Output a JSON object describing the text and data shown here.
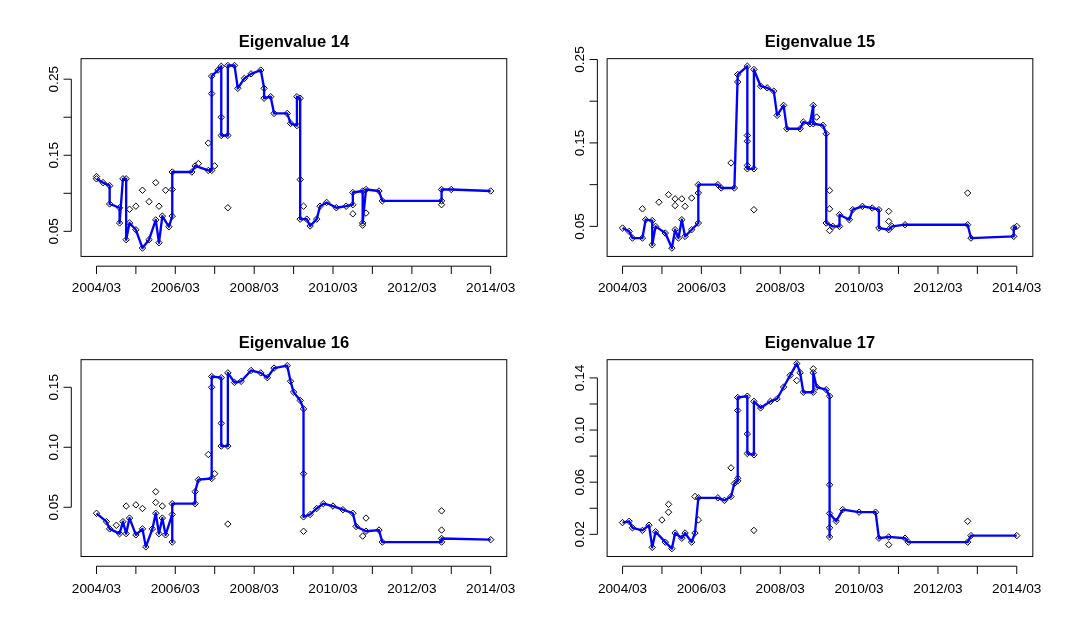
{
  "chart_data": [
    {
      "type": "line",
      "title": "Eigenvalue 14",
      "xlim": [
        "2003-10-10",
        "2014-07-28"
      ],
      "ylim": [
        0.017,
        0.277
      ],
      "xticks": [
        {
          "value": "2004-03",
          "label": "2004/03"
        },
        {
          "value": "2005-03",
          "label": null
        },
        {
          "value": "2006-03",
          "label": "2006/03"
        },
        {
          "value": "2007-03",
          "label": null
        },
        {
          "value": "2008-03",
          "label": "2008/03"
        },
        {
          "value": "2009-03",
          "label": null
        },
        {
          "value": "2010-03",
          "label": "2010/03"
        },
        {
          "value": "2011-03",
          "label": null
        },
        {
          "value": "2012-03",
          "label": "2012/03"
        },
        {
          "value": "2013-03",
          "label": null
        },
        {
          "value": "2014-03",
          "label": "2014/03"
        }
      ],
      "yticks": [
        0.05,
        {
          "value": 0.1,
          "label": null
        },
        0.15,
        {
          "value": 0.2,
          "label": null
        },
        0.25
      ],
      "grid": false,
      "series": [
        {
          "type": "scatter",
          "color": "#000000",
          "marker": "diamond",
          "x": [
            "2004-03",
            "2004-05",
            "2004-07",
            "2004-07",
            "2004-10",
            "2004-10",
            "2004-11",
            "2004-12",
            "2004-12",
            "2005-01",
            "2005-03",
            "2005-05",
            "2005-07",
            "2005-09",
            "2005-10",
            "2005-11",
            "2006-01",
            "2006-02",
            "2006-02",
            "2006-08",
            "2006-09",
            "2007-01",
            "2007-02",
            "2007-02",
            "2007-04",
            "2007-05",
            "2007-05",
            "2007-07",
            "2007-07",
            "2007-09",
            "2007-10",
            "2007-12",
            "2008-02",
            "2008-05",
            "2008-06",
            "2008-06",
            "2008-08",
            "2008-09",
            "2009-01",
            "2009-02",
            "2009-04",
            "2009-04",
            "2009-05",
            "2009-05",
            "2009-07",
            "2009-08",
            "2009-10",
            "2009-11",
            "2010-01",
            "2010-04",
            "2010-07",
            "2010-09",
            "2010-09",
            "2010-12",
            "2010-12",
            "2011-01",
            "2011-05",
            "2011-06",
            "2012-12",
            "2012-12",
            "2013-03",
            "2014-03",
            "2004-03",
            "2005-05",
            "2005-09",
            "2005-07",
            "2005-12",
            "2006-02",
            "2007-01",
            "2007-02",
            "2007-05",
            "2007-07",
            "2009-05",
            "2009-06",
            "2010-09",
            "2011-01",
            "2012-12",
            "2005-01",
            "2005-03",
            "2005-10",
            "2006-10",
            "2007-03",
            "2010-12"
          ],
          "values": [
            0.119,
            0.114,
            0.11,
            0.086,
            0.081,
            0.061,
            0.119,
            0.119,
            0.039,
            0.061,
            0.052,
            0.028,
            0.039,
            0.065,
            0.035,
            0.07,
            0.056,
            0.07,
            0.128,
            0.128,
            0.136,
            0.13,
            0.13,
            0.254,
            0.262,
            0.267,
            0.176,
            0.176,
            0.268,
            0.268,
            0.238,
            0.251,
            0.257,
            0.262,
            0.238,
            0.225,
            0.227,
            0.205,
            0.205,
            0.192,
            0.189,
            0.227,
            0.225,
            0.066,
            0.066,
            0.057,
            0.066,
            0.083,
            0.088,
            0.081,
            0.083,
            0.085,
            0.101,
            0.103,
            0.061,
            0.105,
            0.103,
            0.09,
            0.09,
            0.105,
            0.105,
            0.103,
            0.122,
            0.104,
            0.114,
            0.089,
            0.104,
            0.105,
            0.166,
            0.231,
            0.2,
            0.081,
            0.118,
            0.083,
            0.073,
            0.074,
            0.085,
            0.079,
            0.083,
            0.083,
            0.139,
            0.136,
            0.058
          ]
        },
        {
          "type": "line",
          "color": "#0000ff",
          "x": [
            "2004-03",
            "2004-05",
            "2004-07",
            "2004-07",
            "2004-10",
            "2004-10",
            "2004-11",
            "2004-12",
            "2004-12",
            "2005-01",
            "2005-03",
            "2005-05",
            "2005-07",
            "2005-09",
            "2005-10",
            "2005-11",
            "2006-01",
            "2006-02",
            "2006-02",
            "2006-08",
            "2006-09",
            "2007-01",
            "2007-02",
            "2007-02",
            "2007-04",
            "2007-05",
            "2007-05",
            "2007-07",
            "2007-07",
            "2007-09",
            "2007-10",
            "2007-12",
            "2008-02",
            "2008-05",
            "2008-06",
            "2008-06",
            "2008-08",
            "2008-09",
            "2009-01",
            "2009-02",
            "2009-04",
            "2009-04",
            "2009-05",
            "2009-05",
            "2009-07",
            "2009-08",
            "2009-10",
            "2009-11",
            "2010-01",
            "2010-04",
            "2010-07",
            "2010-09",
            "2010-09",
            "2010-12",
            "2010-12",
            "2011-01",
            "2011-05",
            "2011-06",
            "2012-12",
            "2012-12",
            "2013-03",
            "2014-03"
          ],
          "values": [
            0.119,
            0.114,
            0.11,
            0.086,
            0.081,
            0.061,
            0.119,
            0.119,
            0.039,
            0.061,
            0.052,
            0.028,
            0.039,
            0.065,
            0.035,
            0.07,
            0.056,
            0.07,
            0.128,
            0.128,
            0.136,
            0.13,
            0.13,
            0.254,
            0.262,
            0.267,
            0.176,
            0.176,
            0.268,
            0.268,
            0.238,
            0.251,
            0.257,
            0.262,
            0.238,
            0.225,
            0.227,
            0.205,
            0.205,
            0.192,
            0.189,
            0.227,
            0.225,
            0.066,
            0.066,
            0.057,
            0.066,
            0.083,
            0.088,
            0.081,
            0.083,
            0.085,
            0.101,
            0.103,
            0.061,
            0.105,
            0.103,
            0.09,
            0.09,
            0.105,
            0.105,
            0.103
          ]
        }
      ]
    },
    {
      "type": "line",
      "title": "Eigenvalue 15",
      "xlim": [
        "2003-10-10",
        "2014-07-28"
      ],
      "ylim": [
        0.014,
        0.251
      ],
      "xticks": [
        {
          "value": "2004-03",
          "label": "2004/03"
        },
        {
          "value": "2005-03",
          "label": null
        },
        {
          "value": "2006-03",
          "label": "2006/03"
        },
        {
          "value": "2007-03",
          "label": null
        },
        {
          "value": "2008-03",
          "label": "2008/03"
        },
        {
          "value": "2009-03",
          "label": null
        },
        {
          "value": "2010-03",
          "label": "2010/03"
        },
        {
          "value": "2011-03",
          "label": null
        },
        {
          "value": "2012-03",
          "label": "2012/03"
        },
        {
          "value": "2013-03",
          "label": null
        },
        {
          "value": "2014-03",
          "label": "2014/03"
        }
      ],
      "yticks": [
        0.05,
        {
          "value": 0.1,
          "label": null
        },
        0.15,
        {
          "value": 0.2,
          "label": null
        },
        0.25
      ],
      "grid": false,
      "series": [
        {
          "type": "scatter",
          "color": "#000000",
          "marker": "diamond",
          "x": [
            "2004-03",
            "2004-05",
            "2004-06",
            "2004-09",
            "2004-10",
            "2004-12",
            "2004-12",
            "2005-01",
            "2005-04",
            "2005-06",
            "2005-07",
            "2005-08",
            "2005-09",
            "2005-10",
            "2005-12",
            "2006-02",
            "2006-02",
            "2006-08",
            "2006-09",
            "2007-01",
            "2007-02",
            "2007-05",
            "2007-05",
            "2007-07",
            "2007-07",
            "2007-09",
            "2007-11",
            "2008-01",
            "2008-02",
            "2008-04",
            "2008-05",
            "2008-09",
            "2008-10",
            "2008-12",
            "2009-01",
            "2009-01",
            "2009-04",
            "2009-05",
            "2009-05",
            "2009-07",
            "2009-09",
            "2009-09",
            "2009-12",
            "2010-01",
            "2010-04",
            "2010-07",
            "2010-09",
            "2010-09",
            "2010-12",
            "2011-01",
            "2011-05",
            "2012-12",
            "2013-01",
            "2014-02",
            "2014-02",
            "2014-03",
            "2004-09",
            "2005-02",
            "2005-05",
            "2005-07",
            "2005-07",
            "2005-09",
            "2005-10",
            "2005-12",
            "2006-02",
            "2006-12",
            "2007-02",
            "2007-05",
            "2007-05",
            "2007-05",
            "2007-07",
            "2009-06",
            "2009-06",
            "2009-06",
            "2010-12",
            "2010-12",
            "2012-12",
            "2009-02"
          ],
          "values": [
            0.048,
            0.044,
            0.036,
            0.036,
            0.058,
            0.057,
            0.028,
            0.05,
            0.042,
            0.024,
            0.046,
            0.036,
            0.058,
            0.038,
            0.046,
            0.054,
            0.1,
            0.1,
            0.096,
            0.096,
            0.232,
            0.242,
            0.119,
            0.119,
            0.238,
            0.218,
            0.216,
            0.212,
            0.183,
            0.195,
            0.167,
            0.167,
            0.175,
            0.173,
            0.195,
            0.173,
            0.171,
            0.161,
            0.054,
            0.05,
            0.05,
            0.064,
            0.058,
            0.07,
            0.074,
            0.072,
            0.07,
            0.048,
            0.046,
            0.05,
            0.052,
            0.052,
            0.036,
            0.038,
            0.048,
            0.05,
            0.071,
            0.079,
            0.088,
            0.083,
            0.075,
            0.083,
            0.074,
            0.084,
            0.09,
            0.126,
            0.223,
            0.159,
            0.152,
            0.123,
            0.07,
            0.093,
            0.071,
            0.045,
            0.068,
            0.056,
            0.09,
            0.181
          ]
        },
        {
          "type": "line",
          "color": "#0000ff",
          "x": [
            "2004-03",
            "2004-05",
            "2004-06",
            "2004-09",
            "2004-10",
            "2004-12",
            "2004-12",
            "2005-01",
            "2005-04",
            "2005-06",
            "2005-07",
            "2005-08",
            "2005-09",
            "2005-10",
            "2005-12",
            "2006-02",
            "2006-02",
            "2006-08",
            "2006-09",
            "2007-01",
            "2007-02",
            "2007-05",
            "2007-05",
            "2007-07",
            "2007-07",
            "2007-09",
            "2007-11",
            "2008-01",
            "2008-02",
            "2008-04",
            "2008-05",
            "2008-09",
            "2008-10",
            "2008-12",
            "2009-01",
            "2009-01",
            "2009-04",
            "2009-05",
            "2009-05",
            "2009-07",
            "2009-09",
            "2009-09",
            "2009-12",
            "2010-01",
            "2010-04",
            "2010-07",
            "2010-09",
            "2010-09",
            "2010-12",
            "2011-01",
            "2011-05",
            "2012-12",
            "2013-01",
            "2014-02",
            "2014-02",
            "2014-03"
          ],
          "values": [
            0.048,
            0.044,
            0.036,
            0.036,
            0.058,
            0.057,
            0.028,
            0.05,
            0.042,
            0.024,
            0.046,
            0.036,
            0.058,
            0.038,
            0.046,
            0.054,
            0.1,
            0.1,
            0.096,
            0.096,
            0.232,
            0.242,
            0.119,
            0.119,
            0.238,
            0.218,
            0.216,
            0.212,
            0.183,
            0.195,
            0.167,
            0.167,
            0.175,
            0.173,
            0.195,
            0.173,
            0.171,
            0.161,
            0.054,
            0.05,
            0.05,
            0.064,
            0.058,
            0.07,
            0.074,
            0.072,
            0.07,
            0.048,
            0.046,
            0.05,
            0.052,
            0.052,
            0.036,
            0.038,
            0.048,
            0.05
          ]
        }
      ]
    },
    {
      "type": "line",
      "title": "Eigenvalue 16",
      "xlim": [
        "2003-10-10",
        "2014-07-28"
      ],
      "ylim": [
        0.009,
        0.173
      ],
      "xticks": [
        {
          "value": "2004-03",
          "label": "2004/03"
        },
        {
          "value": "2005-03",
          "label": null
        },
        {
          "value": "2006-03",
          "label": "2006/03"
        },
        {
          "value": "2007-03",
          "label": null
        },
        {
          "value": "2008-03",
          "label": "2008/03"
        },
        {
          "value": "2009-03",
          "label": null
        },
        {
          "value": "2010-03",
          "label": "2010/03"
        },
        {
          "value": "2011-03",
          "label": null
        },
        {
          "value": "2012-03",
          "label": "2012/03"
        },
        {
          "value": "2013-03",
          "label": null
        },
        {
          "value": "2014-03",
          "label": "2014/03"
        }
      ],
      "yticks": [
        {
          "value": 0.05,
          "label": "0.05"
        },
        {
          "value": 0.1,
          "label": "0.10"
        },
        0.15
      ],
      "grid": false,
      "series": [
        {
          "type": "scatter",
          "color": "#000000",
          "marker": "diamond",
          "x": [
            "2004-03",
            "2004-06",
            "2004-07",
            "2004-10",
            "2004-11",
            "2004-12",
            "2005-01",
            "2005-03",
            "2005-05",
            "2005-06",
            "2005-08",
            "2005-09",
            "2005-10",
            "2005-11",
            "2005-12",
            "2006-02",
            "2006-02",
            "2006-02",
            "2006-09",
            "2006-09",
            "2006-10",
            "2007-02",
            "2007-02",
            "2007-05",
            "2007-05",
            "2007-07",
            "2007-07",
            "2007-09",
            "2007-11",
            "2008-02",
            "2008-05",
            "2008-07",
            "2008-09",
            "2009-01",
            "2009-02",
            "2009-03",
            "2009-05",
            "2009-06",
            "2009-06",
            "2009-08",
            "2009-10",
            "2009-12",
            "2010-03",
            "2010-06",
            "2010-09",
            "2010-10",
            "2011-01",
            "2011-05",
            "2011-06",
            "2012-12",
            "2012-12",
            "2014-03",
            "2004-12",
            "2005-03",
            "2005-05",
            "2005-09",
            "2005-09",
            "2005-11",
            "2004-09",
            "2007-01",
            "2007-02",
            "2007-05",
            "2007-07",
            "2009-06",
            "2009-06",
            "2011-01",
            "2010-12",
            "2012-12",
            "2012-12",
            "2007-03"
          ],
          "values": [
            0.045,
            0.038,
            0.032,
            0.028,
            0.038,
            0.028,
            0.041,
            0.027,
            0.032,
            0.017,
            0.032,
            0.045,
            0.028,
            0.041,
            0.027,
            0.044,
            0.021,
            0.053,
            0.053,
            0.063,
            0.073,
            0.074,
            0.159,
            0.158,
            0.101,
            0.101,
            0.162,
            0.154,
            0.155,
            0.164,
            0.162,
            0.158,
            0.166,
            0.168,
            0.155,
            0.146,
            0.139,
            0.132,
            0.042,
            0.044,
            0.049,
            0.053,
            0.051,
            0.048,
            0.045,
            0.034,
            0.03,
            0.031,
            0.021,
            0.021,
            0.024,
            0.023,
            0.051,
            0.052,
            0.049,
            0.063,
            0.054,
            0.051,
            0.035,
            0.094,
            0.15,
            0.12,
            0.036,
            0.078,
            0.03,
            0.041,
            0.026,
            0.047,
            0.031,
            0.078
          ]
        },
        {
          "type": "line",
          "color": "#0000ff",
          "x": [
            "2004-03",
            "2004-06",
            "2004-07",
            "2004-10",
            "2004-11",
            "2004-12",
            "2005-01",
            "2005-03",
            "2005-05",
            "2005-06",
            "2005-08",
            "2005-09",
            "2005-10",
            "2005-11",
            "2005-12",
            "2006-02",
            "2006-02",
            "2006-02",
            "2006-09",
            "2006-09",
            "2006-10",
            "2007-02",
            "2007-02",
            "2007-05",
            "2007-05",
            "2007-07",
            "2007-07",
            "2007-09",
            "2007-11",
            "2008-02",
            "2008-05",
            "2008-07",
            "2008-09",
            "2009-01",
            "2009-02",
            "2009-03",
            "2009-05",
            "2009-06",
            "2009-06",
            "2009-08",
            "2009-10",
            "2009-12",
            "2010-03",
            "2010-06",
            "2010-09",
            "2010-10",
            "2011-01",
            "2011-05",
            "2011-06",
            "2012-12",
            "2012-12",
            "2014-03"
          ],
          "values": [
            0.045,
            0.038,
            0.032,
            0.028,
            0.038,
            0.028,
            0.041,
            0.027,
            0.032,
            0.017,
            0.032,
            0.045,
            0.028,
            0.041,
            0.027,
            0.044,
            0.021,
            0.053,
            0.053,
            0.063,
            0.073,
            0.074,
            0.159,
            0.158,
            0.101,
            0.101,
            0.162,
            0.154,
            0.155,
            0.164,
            0.162,
            0.158,
            0.166,
            0.168,
            0.155,
            0.146,
            0.139,
            0.132,
            0.042,
            0.044,
            0.049,
            0.053,
            0.051,
            0.048,
            0.045,
            0.034,
            0.03,
            0.031,
            0.021,
            0.021,
            0.024,
            0.023
          ]
        }
      ]
    },
    {
      "type": "line",
      "title": "Eigenvalue 17",
      "xlim": [
        "2003-10-10",
        "2014-07-28"
      ],
      "ylim": [
        0.003,
        0.154
      ],
      "xticks": [
        {
          "value": "2004-03",
          "label": "2004/03"
        },
        {
          "value": "2005-03",
          "label": null
        },
        {
          "value": "2006-03",
          "label": "2006/03"
        },
        {
          "value": "2007-03",
          "label": null
        },
        {
          "value": "2008-03",
          "label": "2008/03"
        },
        {
          "value": "2009-03",
          "label": null
        },
        {
          "value": "2010-03",
          "label": "2010/03"
        },
        {
          "value": "2011-03",
          "label": null
        },
        {
          "value": "2012-03",
          "label": "2012/03"
        },
        {
          "value": "2013-03",
          "label": null
        },
        {
          "value": "2014-03",
          "label": "2014/03"
        }
      ],
      "yticks": [
        0.02,
        {
          "value": 0.04,
          "label": null
        },
        0.06,
        {
          "value": 0.08,
          "label": null
        },
        {
          "value": 0.1,
          "label": "0.10"
        },
        {
          "value": 0.12,
          "label": null
        },
        0.14
      ],
      "grid": false,
      "series": [
        {
          "type": "scatter",
          "color": "#000000",
          "marker": "diamond",
          "x": [
            "2004-03",
            "2004-05",
            "2004-06",
            "2004-09",
            "2004-11",
            "2004-12",
            "2005-01",
            "2005-04",
            "2005-06",
            "2005-07",
            "2005-09",
            "2005-10",
            "2005-12",
            "2006-01",
            "2006-02",
            "2006-08",
            "2006-10",
            "2006-12",
            "2007-01",
            "2007-02",
            "2007-02",
            "2007-05",
            "2007-05",
            "2007-07",
            "2007-07",
            "2007-09",
            "2007-12",
            "2008-02",
            "2008-04",
            "2008-06",
            "2008-08",
            "2008-09",
            "2008-10",
            "2009-01",
            "2009-01",
            "2009-02",
            "2009-05",
            "2009-06",
            "2009-06",
            "2009-06",
            "2009-08",
            "2009-10",
            "2010-03",
            "2010-08",
            "2010-09",
            "2010-12",
            "2011-05",
            "2011-06",
            "2012-12",
            "2013-01",
            "2014-03",
            "2005-03",
            "2005-05",
            "2005-05",
            "2006-01",
            "2006-02",
            "2006-12",
            "2007-02",
            "2007-02",
            "2007-05",
            "2007-07",
            "2009-01",
            "2009-06",
            "2009-06",
            "2010-12",
            "2012-12",
            "2008-08"
          ],
          "values": [
            0.029,
            0.03,
            0.025,
            0.023,
            0.027,
            0.01,
            0.022,
            0.014,
            0.009,
            0.021,
            0.017,
            0.021,
            0.014,
            0.021,
            0.048,
            0.048,
            0.046,
            0.049,
            0.059,
            0.061,
            0.125,
            0.126,
            0.082,
            0.081,
            0.122,
            0.117,
            0.122,
            0.124,
            0.133,
            0.142,
            0.151,
            0.144,
            0.129,
            0.129,
            0.144,
            0.133,
            0.131,
            0.126,
            0.018,
            0.036,
            0.03,
            0.039,
            0.037,
            0.037,
            0.017,
            0.018,
            0.017,
            0.014,
            0.014,
            0.019,
            0.019,
            0.031,
            0.037,
            0.043,
            0.049,
            0.031,
            0.071,
            0.115,
            0.063,
            0.097,
            0.023,
            0.147,
            0.058,
            0.025,
            0.012,
            0.03,
            0.138
          ]
        },
        {
          "type": "line",
          "color": "#0000ff",
          "x": [
            "2004-03",
            "2004-05",
            "2004-06",
            "2004-09",
            "2004-11",
            "2004-12",
            "2005-01",
            "2005-04",
            "2005-06",
            "2005-07",
            "2005-09",
            "2005-10",
            "2005-12",
            "2006-01",
            "2006-02",
            "2006-08",
            "2006-10",
            "2006-12",
            "2007-01",
            "2007-02",
            "2007-02",
            "2007-05",
            "2007-05",
            "2007-07",
            "2007-07",
            "2007-09",
            "2007-12",
            "2008-02",
            "2008-04",
            "2008-06",
            "2008-08",
            "2008-09",
            "2008-10",
            "2009-01",
            "2009-01",
            "2009-02",
            "2009-05",
            "2009-06",
            "2009-06",
            "2009-06",
            "2009-08",
            "2009-10",
            "2010-03",
            "2010-08",
            "2010-09",
            "2010-12",
            "2011-05",
            "2011-06",
            "2012-12",
            "2013-01",
            "2014-03"
          ],
          "values": [
            0.029,
            0.03,
            0.025,
            0.023,
            0.027,
            0.01,
            0.022,
            0.014,
            0.009,
            0.021,
            0.017,
            0.021,
            0.014,
            0.021,
            0.048,
            0.048,
            0.046,
            0.049,
            0.059,
            0.061,
            0.125,
            0.126,
            0.082,
            0.081,
            0.122,
            0.117,
            0.122,
            0.124,
            0.133,
            0.142,
            0.151,
            0.144,
            0.129,
            0.129,
            0.144,
            0.133,
            0.131,
            0.126,
            0.018,
            0.036,
            0.03,
            0.039,
            0.037,
            0.037,
            0.017,
            0.018,
            0.017,
            0.014,
            0.014,
            0.019,
            0.019
          ]
        }
      ]
    }
  ]
}
